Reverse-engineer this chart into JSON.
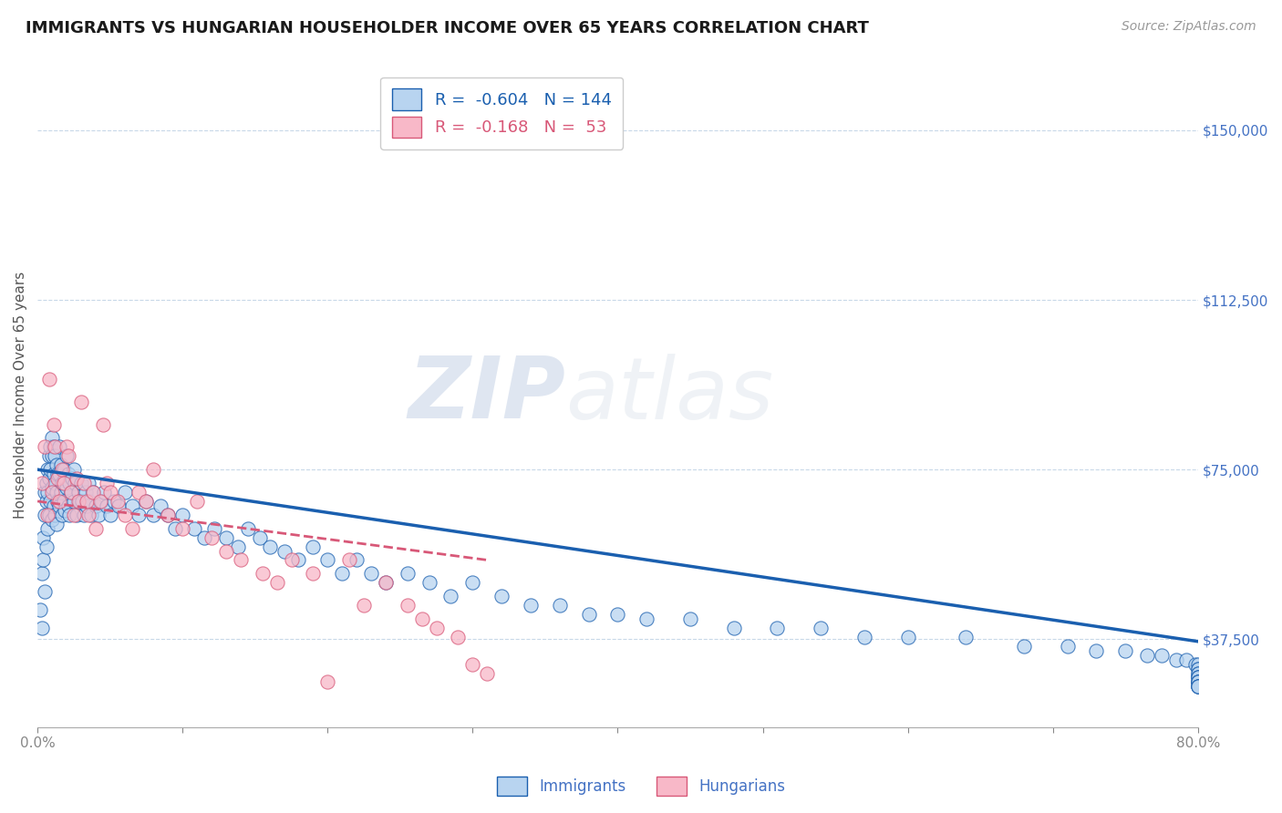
{
  "title": "IMMIGRANTS VS HUNGARIAN HOUSEHOLDER INCOME OVER 65 YEARS CORRELATION CHART",
  "source": "Source: ZipAtlas.com",
  "ylabel": "Householder Income Over 65 years",
  "yticks": [
    37500,
    75000,
    112500,
    150000
  ],
  "ytick_labels": [
    "$37,500",
    "$75,000",
    "$112,500",
    "$150,000"
  ],
  "xlim": [
    0.0,
    0.8
  ],
  "ylim": [
    18000,
    165000
  ],
  "R_immigrants": -0.604,
  "N_immigrants": 144,
  "R_hungarians": -0.168,
  "N_hungarians": 53,
  "scatter_color_immigrants": "#b8d4f0",
  "scatter_color_hungarians": "#f8b8c8",
  "line_color_immigrants": "#1a5faf",
  "line_color_hungarians": "#d85878",
  "background_color": "#ffffff",
  "grid_color": "#c8d8e8",
  "title_color": "#1a1a1a",
  "axis_label_color": "#4472c4",
  "title_fontsize": 13,
  "axis_label_fontsize": 11,
  "tick_label_fontsize": 11,
  "immigrants_x": [
    0.002,
    0.003,
    0.003,
    0.004,
    0.004,
    0.005,
    0.005,
    0.005,
    0.006,
    0.006,
    0.006,
    0.007,
    0.007,
    0.007,
    0.008,
    0.008,
    0.008,
    0.009,
    0.009,
    0.009,
    0.01,
    0.01,
    0.01,
    0.01,
    0.011,
    0.011,
    0.011,
    0.012,
    0.012,
    0.012,
    0.013,
    0.013,
    0.013,
    0.014,
    0.014,
    0.015,
    0.015,
    0.015,
    0.016,
    0.016,
    0.017,
    0.017,
    0.018,
    0.018,
    0.019,
    0.019,
    0.02,
    0.02,
    0.021,
    0.021,
    0.022,
    0.022,
    0.023,
    0.024,
    0.025,
    0.025,
    0.026,
    0.027,
    0.028,
    0.029,
    0.03,
    0.031,
    0.032,
    0.033,
    0.034,
    0.035,
    0.036,
    0.037,
    0.038,
    0.04,
    0.042,
    0.044,
    0.046,
    0.048,
    0.05,
    0.053,
    0.056,
    0.06,
    0.065,
    0.07,
    0.075,
    0.08,
    0.085,
    0.09,
    0.095,
    0.1,
    0.108,
    0.115,
    0.122,
    0.13,
    0.138,
    0.145,
    0.153,
    0.16,
    0.17,
    0.18,
    0.19,
    0.2,
    0.21,
    0.22,
    0.23,
    0.24,
    0.255,
    0.27,
    0.285,
    0.3,
    0.32,
    0.34,
    0.36,
    0.38,
    0.4,
    0.42,
    0.45,
    0.48,
    0.51,
    0.54,
    0.57,
    0.6,
    0.64,
    0.68,
    0.71,
    0.73,
    0.75,
    0.765,
    0.775,
    0.785,
    0.792,
    0.798,
    0.8,
    0.8,
    0.8,
    0.8,
    0.8,
    0.8,
    0.8,
    0.8,
    0.8,
    0.8,
    0.8,
    0.8,
    0.8,
    0.8,
    0.8,
    0.8
  ],
  "immigrants_y": [
    44000,
    52000,
    40000,
    60000,
    55000,
    65000,
    70000,
    48000,
    72000,
    68000,
    58000,
    75000,
    70000,
    62000,
    78000,
    73000,
    65000,
    80000,
    75000,
    68000,
    82000,
    78000,
    71000,
    64000,
    80000,
    74000,
    67000,
    78000,
    72000,
    65000,
    76000,
    70000,
    63000,
    74000,
    68000,
    80000,
    74000,
    67000,
    76000,
    70000,
    72000,
    65000,
    75000,
    68000,
    73000,
    66000,
    78000,
    71000,
    74000,
    67000,
    72000,
    65000,
    70000,
    73000,
    75000,
    68000,
    72000,
    65000,
    70000,
    68000,
    72000,
    68000,
    65000,
    70000,
    67000,
    72000,
    68000,
    65000,
    70000,
    67000,
    65000,
    68000,
    70000,
    67000,
    65000,
    68000,
    67000,
    70000,
    67000,
    65000,
    68000,
    65000,
    67000,
    65000,
    62000,
    65000,
    62000,
    60000,
    62000,
    60000,
    58000,
    62000,
    60000,
    58000,
    57000,
    55000,
    58000,
    55000,
    52000,
    55000,
    52000,
    50000,
    52000,
    50000,
    47000,
    50000,
    47000,
    45000,
    45000,
    43000,
    43000,
    42000,
    42000,
    40000,
    40000,
    40000,
    38000,
    38000,
    38000,
    36000,
    36000,
    35000,
    35000,
    34000,
    34000,
    33000,
    33000,
    32000,
    32000,
    31000,
    31000,
    30000,
    30000,
    29000,
    29000,
    29000,
    28000,
    28000,
    28000,
    28000,
    27000,
    27000,
    27000,
    27000
  ],
  "hungarians_x": [
    0.003,
    0.005,
    0.007,
    0.008,
    0.01,
    0.011,
    0.012,
    0.014,
    0.015,
    0.017,
    0.018,
    0.02,
    0.021,
    0.023,
    0.025,
    0.027,
    0.028,
    0.03,
    0.032,
    0.034,
    0.035,
    0.038,
    0.04,
    0.043,
    0.045,
    0.048,
    0.05,
    0.055,
    0.06,
    0.065,
    0.07,
    0.075,
    0.08,
    0.09,
    0.1,
    0.11,
    0.12,
    0.13,
    0.14,
    0.155,
    0.165,
    0.175,
    0.19,
    0.2,
    0.215,
    0.225,
    0.24,
    0.255,
    0.265,
    0.275,
    0.29,
    0.3,
    0.31
  ],
  "hungarians_y": [
    72000,
    80000,
    65000,
    95000,
    70000,
    85000,
    80000,
    73000,
    68000,
    75000,
    72000,
    80000,
    78000,
    70000,
    65000,
    73000,
    68000,
    90000,
    72000,
    68000,
    65000,
    70000,
    62000,
    68000,
    85000,
    72000,
    70000,
    68000,
    65000,
    62000,
    70000,
    68000,
    75000,
    65000,
    62000,
    68000,
    60000,
    57000,
    55000,
    52000,
    50000,
    55000,
    52000,
    28000,
    55000,
    45000,
    50000,
    45000,
    42000,
    40000,
    38000,
    32000,
    30000
  ]
}
